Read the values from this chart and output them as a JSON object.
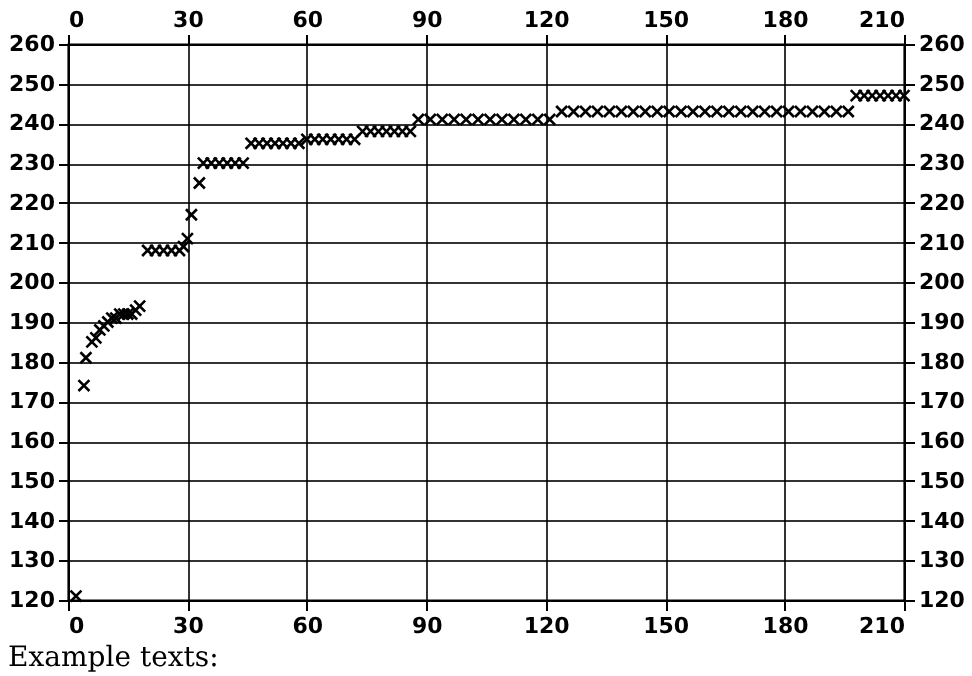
{
  "chart_data": {
    "type": "scatter",
    "x": [
      2,
      4,
      4.5,
      6,
      7,
      8,
      9,
      10,
      11,
      12,
      13,
      14,
      15,
      16,
      17,
      18,
      20,
      22,
      24,
      26,
      28,
      29,
      30,
      31,
      33,
      34,
      36,
      38,
      40,
      42,
      44,
      46,
      48,
      50,
      52,
      54,
      56,
      58,
      60,
      62,
      64,
      66,
      68,
      70,
      72,
      74,
      76,
      78,
      80,
      82,
      84,
      86,
      88,
      91,
      94,
      97,
      100,
      103,
      106,
      109,
      112,
      115,
      118,
      121,
      124,
      127,
      130,
      133,
      136,
      139,
      142,
      145,
      148,
      151,
      154,
      157,
      160,
      163,
      166,
      169,
      172,
      175,
      178,
      181,
      184,
      187,
      190,
      193,
      196,
      198,
      200,
      202,
      204,
      206,
      208,
      210
    ],
    "values": [
      121,
      174,
      181,
      185,
      186,
      188,
      189,
      190,
      191,
      191,
      192,
      192,
      192,
      192,
      193,
      194,
      208,
      208,
      208,
      208,
      208,
      209,
      211,
      217,
      225,
      230,
      230,
      230,
      230,
      230,
      230,
      235,
      235,
      235,
      235,
      235,
      235,
      235,
      236,
      236,
      236,
      236,
      236,
      236,
      236,
      238,
      238,
      238,
      238,
      238,
      238,
      238,
      241,
      241,
      241,
      241,
      241,
      241,
      241,
      241,
      241,
      241,
      241,
      241,
      243,
      243,
      243,
      243,
      243,
      243,
      243,
      243,
      243,
      243,
      243,
      243,
      243,
      243,
      243,
      243,
      243,
      243,
      243,
      243,
      243,
      243,
      243,
      243,
      243,
      247,
      247,
      247,
      247,
      247,
      247,
      247
    ],
    "color": "#000000",
    "marker": "cross",
    "grid": true,
    "xlim": [
      0,
      210
    ],
    "xticks": [
      0,
      30,
      60,
      90,
      120,
      150,
      180,
      210
    ],
    "x2lim": [
      0,
      210
    ],
    "x2ticks": [
      0,
      30,
      60,
      90,
      120,
      150,
      180,
      210
    ],
    "ylim": [
      120,
      260
    ],
    "yticks": [
      120,
      130,
      140,
      150,
      160,
      170,
      180,
      190,
      200,
      210,
      220,
      230,
      240,
      250,
      260
    ],
    "y2lim": [
      120,
      260
    ],
    "y2ticks": [
      120,
      130,
      140,
      150,
      160,
      170,
      180,
      190,
      200,
      210,
      220,
      230,
      240,
      250,
      260
    ],
    "annotations": [
      "Example texts:"
    ]
  }
}
